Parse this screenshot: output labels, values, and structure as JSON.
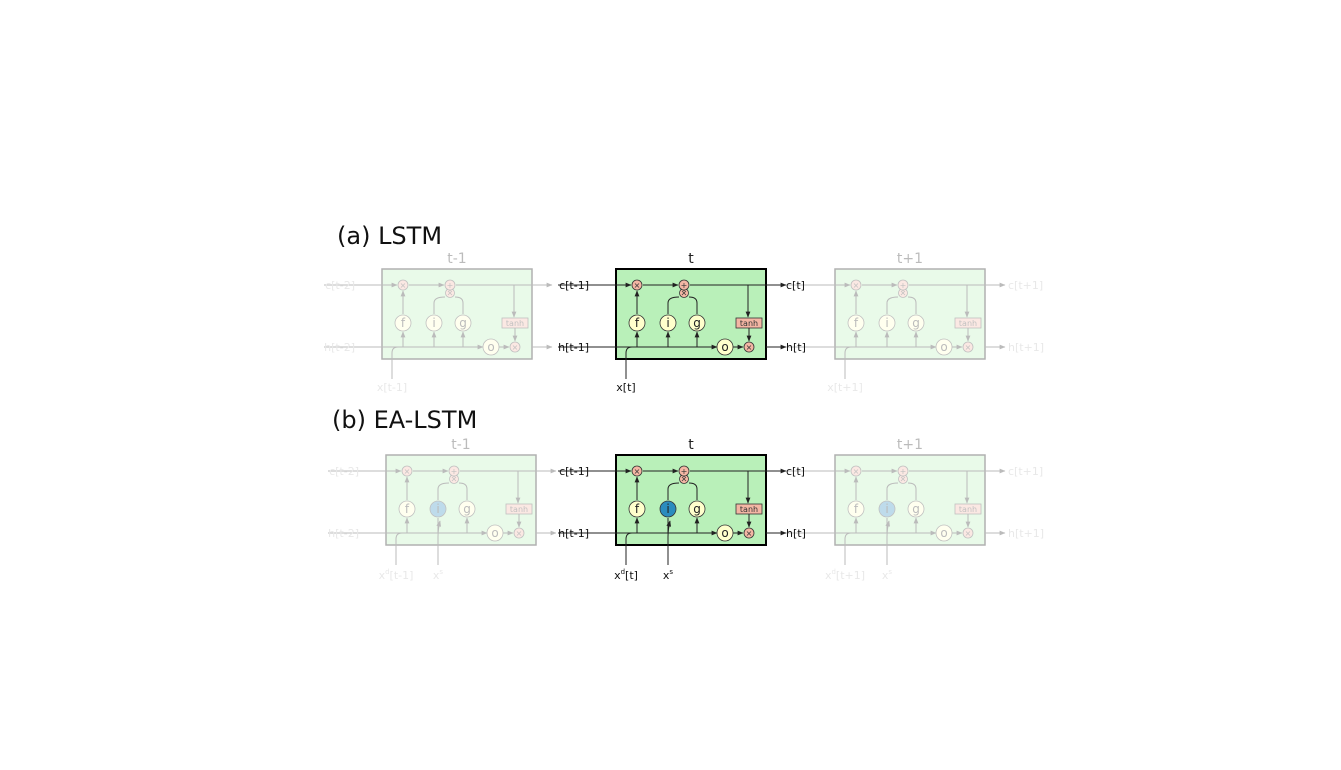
{
  "panels": [
    {
      "title": "(a) LSTM",
      "cells": [
        {
          "step": "t-1",
          "c_in": "c[t-2]",
          "c_out": "",
          "h_in": "h[t-2]",
          "h_out": "",
          "x": "x[t-1]",
          "xs": "",
          "active": false
        },
        {
          "step": "t",
          "c_in": "c[t-1]",
          "c_out": "c[t]",
          "h_in": "h[t-1]",
          "h_out": "h[t]",
          "x": "x[t]",
          "xs": "",
          "active": true
        },
        {
          "step": "t+1",
          "c_in": "",
          "c_out": "c[t+1]",
          "h_in": "",
          "h_out": "h[t+1]",
          "x": "x[t+1]",
          "xs": "",
          "active": false
        }
      ]
    },
    {
      "title": "(b) EA-LSTM",
      "cells": [
        {
          "step": "t-1",
          "c_in": "c[t-2]",
          "c_out": "",
          "h_in": "h[t-2]",
          "h_out": "",
          "x_base": "x",
          "x_sup": "d",
          "x_sub": "[t-1]",
          "xs_base": "x",
          "xs_sup": "s",
          "active": false
        },
        {
          "step": "t",
          "c_in": "c[t-1]",
          "c_out": "c[t]",
          "h_in": "h[t-1]",
          "h_out": "h[t]",
          "x_base": "x",
          "x_sup": "d",
          "x_sub": "[t]",
          "xs_base": "x",
          "xs_sup": "s",
          "active": true
        },
        {
          "step": "t+1",
          "c_in": "",
          "c_out": "c[t+1]",
          "h_in": "",
          "h_out": "h[t+1]",
          "x_base": "x",
          "x_sup": "d",
          "x_sub": "[t+1]",
          "xs_base": "x",
          "xs_sup": "s",
          "active": false
        }
      ]
    }
  ],
  "gates": {
    "f": "f",
    "i": "i",
    "g": "g",
    "o": "o",
    "tanh": "tanh",
    "mul": "×",
    "add": "+"
  },
  "colors": {
    "cell_fill": "#b9f0b9",
    "cell_stroke": "#000000",
    "gate_fill": "#ffffcc",
    "op_fill": "#f4b6a4",
    "ea_input_gate": "#2b8cbe",
    "faded_opacity": "0.3"
  }
}
